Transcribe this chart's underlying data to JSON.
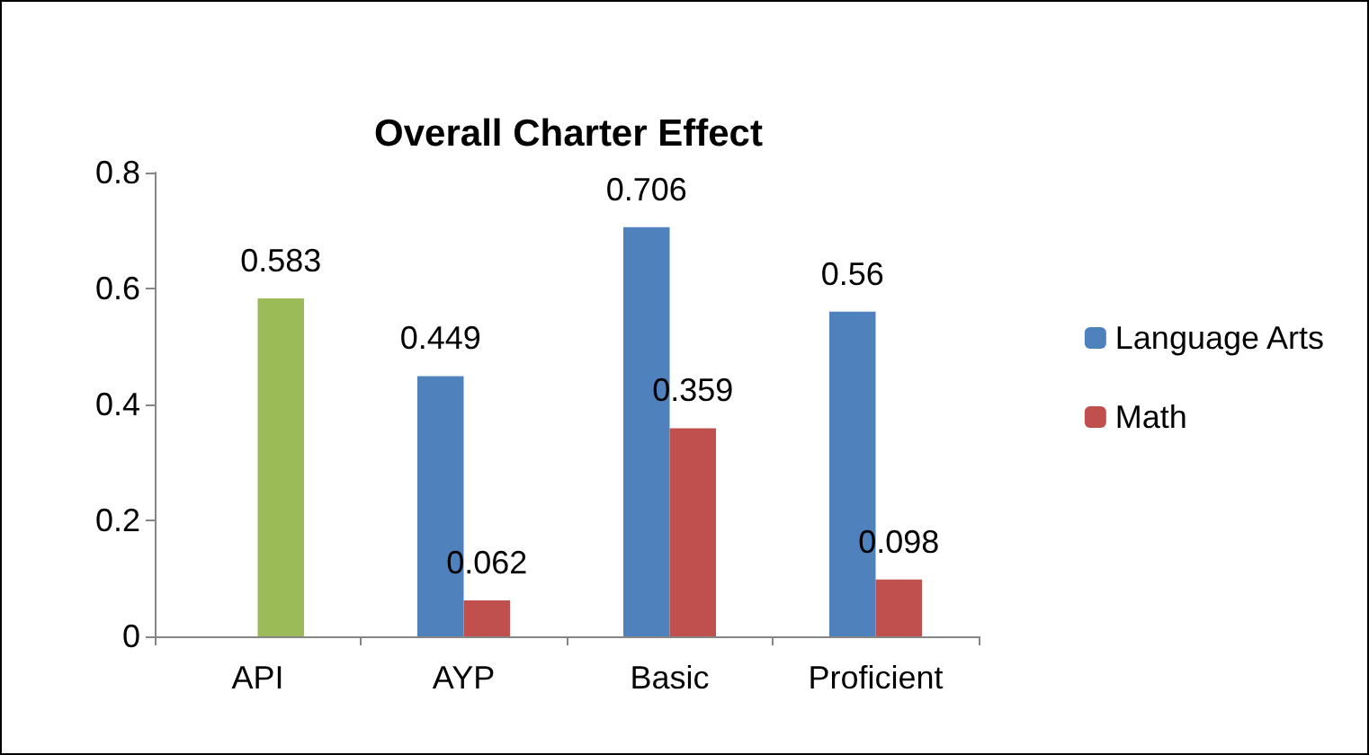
{
  "chart_data": {
    "type": "bar",
    "title": "Overall Charter Effect",
    "categories": [
      "API",
      "AYP",
      "Basic",
      "Proficient"
    ],
    "series": [
      {
        "name": "Language Arts",
        "color": "#4f81bd",
        "values": [
          null,
          0.449,
          0.706,
          0.56
        ]
      },
      {
        "name": "Math",
        "color": "#c0504d",
        "colors": [
          "#9bbb59",
          "#c0504d",
          "#c0504d",
          "#c0504d"
        ],
        "values": [
          0.583,
          0.062,
          0.359,
          0.098
        ]
      }
    ],
    "ylim": [
      0,
      0.8
    ],
    "yticks": [
      0,
      0.2,
      0.4,
      0.6,
      0.8
    ],
    "grid": false,
    "legend": "right",
    "data_labels": true
  }
}
